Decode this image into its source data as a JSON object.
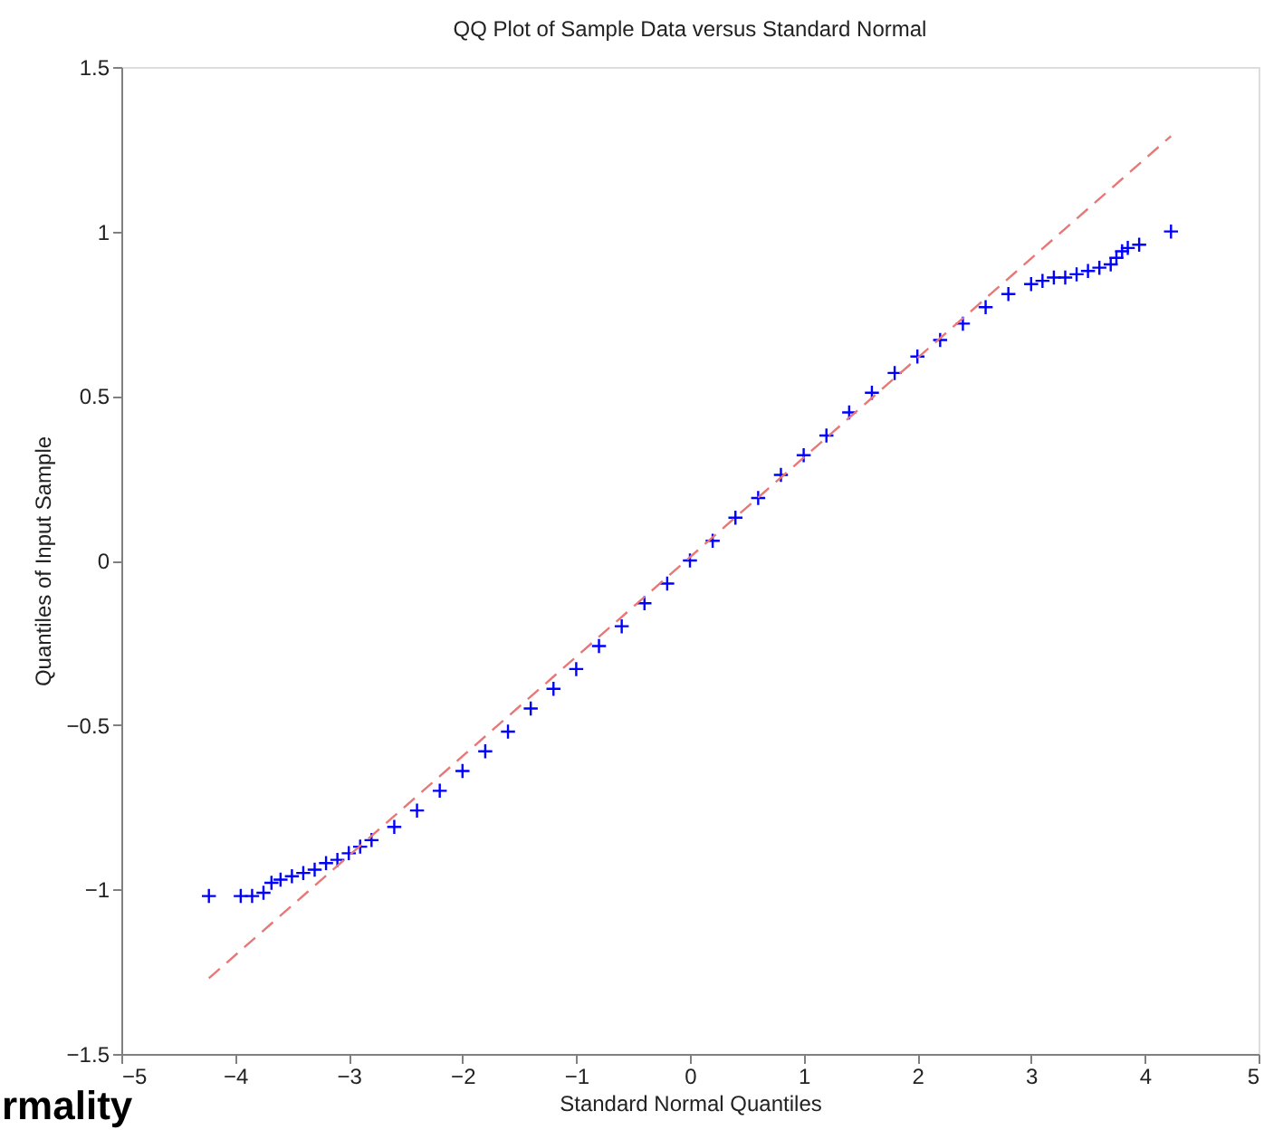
{
  "chart_data": {
    "type": "scatter",
    "title": "QQ Plot of Sample Data versus Standard Normal",
    "xlabel": "Standard Normal Quantiles",
    "ylabel": "Quantiles of Input Sample",
    "xlim": [
      -5,
      5
    ],
    "xticks": [
      -5,
      -4,
      -3,
      -2,
      -1,
      0,
      1,
      2,
      3,
      4,
      5
    ],
    "ylim": [
      -1.5,
      1.5
    ],
    "yticks": [
      -1.5,
      -1,
      -0.5,
      0,
      0.5,
      1,
      1.5
    ],
    "grid": false,
    "series": [
      {
        "marker": "cross",
        "color": "#0000ff",
        "x": [
          -4.23,
          -3.95,
          -3.85,
          -3.75,
          -3.68,
          -3.6,
          -3.5,
          -3.4,
          -3.3,
          -3.2,
          -3.1,
          -3.0,
          -2.9,
          -2.8,
          -2.6,
          -2.4,
          -2.2,
          -2.0,
          -1.8,
          -1.6,
          -1.4,
          -1.2,
          -1.0,
          -0.8,
          -0.6,
          -0.4,
          -0.2,
          0.0,
          0.2,
          0.4,
          0.6,
          0.8,
          1.0,
          1.2,
          1.4,
          1.6,
          1.8,
          2.0,
          2.2,
          2.4,
          2.6,
          2.8,
          3.0,
          3.1,
          3.2,
          3.3,
          3.4,
          3.5,
          3.6,
          3.7,
          3.75,
          3.8,
          3.85,
          3.95,
          4.23
        ],
        "values": [
          -1.02,
          -1.02,
          -1.02,
          -1.01,
          -0.98,
          -0.97,
          -0.96,
          -0.95,
          -0.94,
          -0.92,
          -0.91,
          -0.89,
          -0.87,
          -0.85,
          -0.81,
          -0.76,
          -0.7,
          -0.64,
          -0.58,
          -0.52,
          -0.45,
          -0.39,
          -0.33,
          -0.26,
          -0.2,
          -0.13,
          -0.07,
          0.0,
          0.06,
          0.13,
          0.19,
          0.26,
          0.32,
          0.38,
          0.45,
          0.51,
          0.57,
          0.62,
          0.67,
          0.72,
          0.77,
          0.81,
          0.84,
          0.85,
          0.86,
          0.86,
          0.87,
          0.88,
          0.89,
          0.9,
          0.92,
          0.94,
          0.95,
          0.96,
          1.0
        ]
      },
      {
        "type": "line",
        "color": "#e87878",
        "line_style": "dashed",
        "x": [
          -4.23,
          4.23
        ],
        "values": [
          -1.27,
          1.29
        ]
      }
    ],
    "annotations": [
      "rmality"
    ]
  }
}
